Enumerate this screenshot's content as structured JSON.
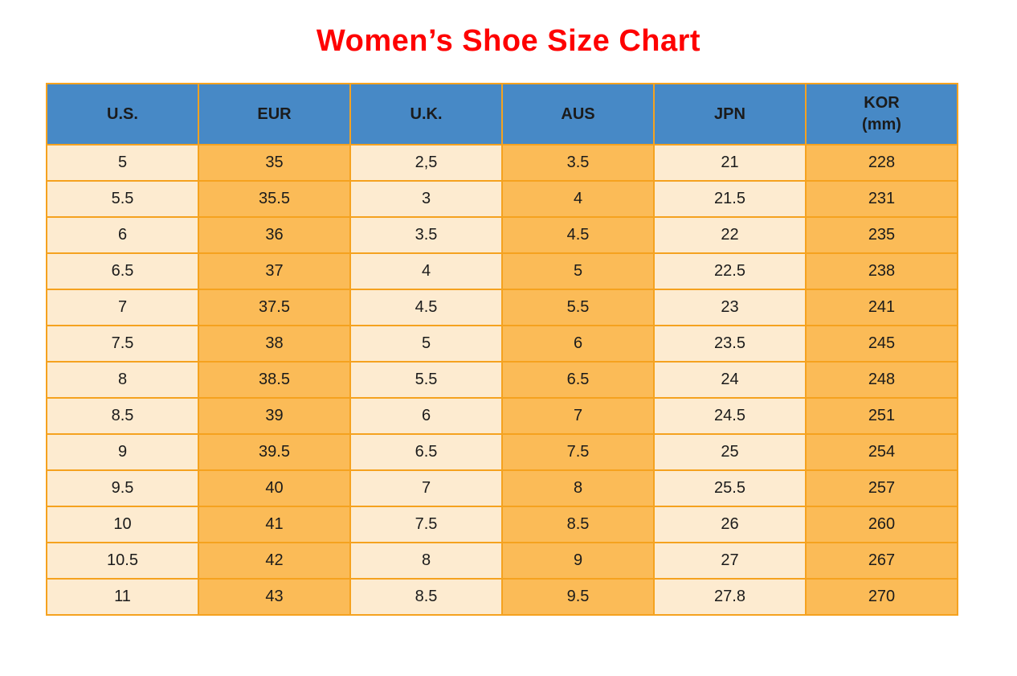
{
  "title": {
    "text": "Women’s Shoe Size Chart"
  },
  "colors": {
    "title_red": "#fe0000",
    "header_blue": "#4789c6",
    "cell_cream": "#fdebd0",
    "cell_orange": "#fbbb57",
    "border_orange": "#f5a21f",
    "text_black": "#1b1b1b"
  },
  "chart_data": {
    "type": "table",
    "title": "Women’s Shoe Size Chart",
    "columns": [
      "U.S.",
      "EUR",
      "U.K.",
      "AUS",
      "JPN",
      "KOR (mm)"
    ],
    "column_header_lines": [
      [
        "U.S."
      ],
      [
        "EUR"
      ],
      [
        "U.K."
      ],
      [
        "AUS"
      ],
      [
        "JPN"
      ],
      [
        "KOR",
        "(mm)"
      ]
    ],
    "rows": [
      [
        "5",
        "35",
        "2,5",
        "3.5",
        "21",
        "228"
      ],
      [
        "5.5",
        "35.5",
        "3",
        "4",
        "21.5",
        "231"
      ],
      [
        "6",
        "36",
        "3.5",
        "4.5",
        "22",
        "235"
      ],
      [
        "6.5",
        "37",
        "4",
        "5",
        "22.5",
        "238"
      ],
      [
        "7",
        "37.5",
        "4.5",
        "5.5",
        "23",
        "241"
      ],
      [
        "7.5",
        "38",
        "5",
        "6",
        "23.5",
        "245"
      ],
      [
        "8",
        "38.5",
        "5.5",
        "6.5",
        "24",
        "248"
      ],
      [
        "8.5",
        "39",
        "6",
        "7",
        "24.5",
        "251"
      ],
      [
        "9",
        "39.5",
        "6.5",
        "7.5",
        "25",
        "254"
      ],
      [
        "9.5",
        "40",
        "7",
        "8",
        "25.5",
        "257"
      ],
      [
        "10",
        "41",
        "7.5",
        "8.5",
        "26",
        "260"
      ],
      [
        "10.5",
        "42",
        "8",
        "9",
        "27",
        "267"
      ],
      [
        "11",
        "43",
        "8.5",
        "9.5",
        "27.8",
        "270"
      ]
    ],
    "layout": {
      "header_position": "top",
      "column_fill_pattern": [
        "cream",
        "orange",
        "cream",
        "orange",
        "cream",
        "orange"
      ],
      "grid": "on"
    }
  }
}
